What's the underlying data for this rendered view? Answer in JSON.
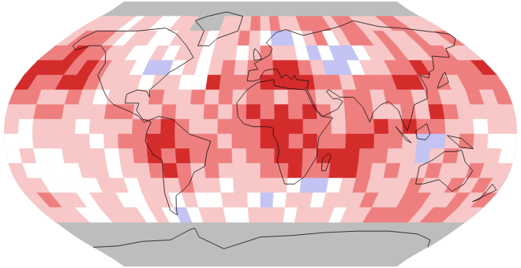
{
  "chart_data": {
    "type": "heatmap",
    "tick_labels": false,
    "x": [
      -175,
      -165,
      -155,
      -145,
      -135,
      -125,
      -115,
      -105,
      -95,
      -85,
      -75,
      -65,
      -55,
      -45,
      -35,
      -25,
      -15,
      -5,
      5,
      15,
      25,
      35,
      45,
      55,
      65,
      75,
      85,
      95,
      105,
      115,
      125,
      135,
      145,
      155,
      165,
      175
    ],
    "y": [
      85,
      75,
      65,
      55,
      45,
      35,
      25,
      15,
      5,
      -5,
      -15,
      -25,
      -35,
      -45,
      -55,
      -65,
      -75,
      -85
    ],
    "xlim": [
      -180,
      180
    ],
    "ylim": [
      -90,
      90
    ],
    "color_levels": [
      -1,
      0,
      1,
      2,
      3
    ],
    "colors": [
      "#c3c3f4",
      "#ffffff",
      "#f8c8c8",
      "#ef7f7f",
      "#d42b2b"
    ],
    "cells": [
      [
        null,
        null,
        null,
        null,
        null,
        null,
        null,
        null,
        null,
        null,
        null,
        null,
        null,
        null,
        null,
        null,
        null,
        null,
        null,
        null,
        null,
        null,
        null,
        null,
        null,
        null,
        null,
        null,
        null,
        null,
        null,
        null,
        null,
        null,
        null,
        null
      ],
      [
        1,
        1,
        1,
        1,
        0,
        1,
        1,
        0,
        0,
        1,
        1,
        null,
        null,
        null,
        1,
        1,
        1,
        2,
        1,
        2,
        1,
        1,
        2,
        2,
        2,
        1,
        2,
        2,
        1,
        1,
        1,
        2,
        2,
        1,
        1,
        1
      ],
      [
        1,
        2,
        2,
        2,
        1,
        0,
        1,
        1,
        0,
        0,
        1,
        1,
        1,
        0,
        1,
        1,
        2,
        1,
        0,
        -1,
        -1,
        0,
        1,
        2,
        0,
        1,
        2,
        2,
        1,
        2,
        1,
        1,
        2,
        1,
        1,
        2
      ],
      [
        2,
        2,
        3,
        2,
        2,
        1,
        1,
        0,
        0,
        1,
        0,
        1,
        1,
        0,
        1,
        1,
        0,
        1,
        2,
        1,
        1,
        0,
        -1,
        0,
        -1,
        -1,
        0,
        1,
        1,
        2,
        1,
        1,
        2,
        2,
        1,
        1
      ],
      [
        3,
        3,
        3,
        2,
        3,
        2,
        1,
        1,
        0,
        -1,
        -1,
        0,
        1,
        0,
        1,
        2,
        1,
        2,
        2,
        3,
        3,
        2,
        1,
        -1,
        -1,
        0,
        1,
        1,
        2,
        2,
        3,
        2,
        2,
        2,
        2,
        3
      ],
      [
        3,
        2,
        2,
        3,
        3,
        2,
        1,
        1,
        1,
        0,
        1,
        1,
        0,
        0,
        3,
        2,
        2,
        2,
        3,
        3,
        3,
        3,
        2,
        2,
        1,
        2,
        2,
        2,
        3,
        3,
        2,
        2,
        1,
        2,
        2,
        2
      ],
      [
        2,
        2,
        1,
        1,
        2,
        1,
        0,
        1,
        1,
        1,
        2,
        1,
        1,
        2,
        1,
        2,
        1,
        2,
        2,
        1,
        2,
        2,
        1,
        1,
        2,
        2,
        1,
        2,
        2,
        1,
        2,
        1,
        1,
        2,
        1,
        2
      ],
      [
        1,
        1,
        2,
        2,
        1,
        1,
        1,
        2,
        2,
        1,
        1,
        2,
        1,
        1,
        2,
        1,
        2,
        3,
        2,
        3,
        2,
        3,
        2,
        1,
        2,
        2,
        1,
        1,
        2,
        1,
        3,
        2,
        1,
        1,
        1,
        1
      ],
      [
        1,
        0,
        1,
        1,
        1,
        0,
        1,
        1,
        1,
        2,
        2,
        3,
        2,
        1,
        1,
        2,
        2,
        2,
        3,
        3,
        3,
        2,
        2,
        1,
        2,
        2,
        3,
        2,
        3,
        2,
        2,
        1,
        1,
        0,
        1,
        1
      ],
      [
        0,
        0,
        1,
        1,
        1,
        1,
        0,
        1,
        2,
        2,
        3,
        3,
        2,
        2,
        2,
        1,
        2,
        2,
        3,
        3,
        2,
        3,
        2,
        2,
        3,
        3,
        2,
        2,
        1,
        -1,
        -1,
        1,
        2,
        1,
        0,
        0
      ],
      [
        0,
        1,
        0,
        0,
        1,
        1,
        1,
        0,
        1,
        2,
        3,
        2,
        3,
        2,
        2,
        2,
        1,
        2,
        2,
        3,
        3,
        2,
        3,
        3,
        3,
        2,
        2,
        1,
        1,
        -1,
        1,
        2,
        1,
        1,
        1,
        0
      ],
      [
        1,
        0,
        0,
        0,
        0,
        1,
        1,
        0,
        1,
        1,
        2,
        3,
        2,
        1,
        2,
        1,
        1,
        1,
        2,
        2,
        3,
        2,
        2,
        3,
        3,
        2,
        1,
        2,
        1,
        1,
        2,
        1,
        1,
        2,
        1,
        1
      ],
      [
        1,
        1,
        0,
        0,
        0,
        0,
        1,
        1,
        0,
        1,
        1,
        1,
        2,
        1,
        1,
        0,
        1,
        1,
        1,
        1,
        0,
        -1,
        -1,
        0,
        1,
        2,
        1,
        1,
        1,
        2,
        1,
        1,
        2,
        1,
        2,
        1
      ],
      [
        1,
        2,
        1,
        1,
        0,
        1,
        1,
        0,
        0,
        1,
        1,
        0,
        1,
        0,
        0,
        1,
        1,
        0,
        -1,
        0,
        1,
        1,
        0,
        1,
        1,
        1,
        2,
        1,
        1,
        2,
        2,
        1,
        1,
        2,
        1,
        2
      ],
      [
        1,
        1,
        1,
        0,
        0,
        1,
        1,
        1,
        0,
        1,
        0,
        -1,
        0,
        1,
        1,
        0,
        0,
        1,
        1,
        1,
        0,
        1,
        1,
        1,
        0,
        1,
        1,
        2,
        2,
        2,
        2,
        1,
        2,
        2,
        1,
        1
      ],
      [
        null,
        null,
        null,
        null,
        null,
        null,
        null,
        null,
        null,
        null,
        null,
        null,
        null,
        null,
        null,
        null,
        null,
        null,
        null,
        null,
        null,
        null,
        null,
        null,
        null,
        null,
        null,
        null,
        null,
        null,
        null,
        null,
        null,
        null,
        null,
        null
      ],
      [
        null,
        null,
        null,
        null,
        null,
        null,
        null,
        null,
        null,
        null,
        null,
        null,
        null,
        null,
        null,
        null,
        null,
        null,
        null,
        null,
        null,
        null,
        null,
        null,
        null,
        null,
        null,
        null,
        null,
        null,
        null,
        null,
        null,
        null,
        null,
        null
      ],
      [
        null,
        null,
        null,
        null,
        null,
        null,
        null,
        null,
        null,
        null,
        null,
        null,
        null,
        null,
        null,
        null,
        null,
        null,
        null,
        null,
        null,
        null,
        null,
        null,
        null,
        null,
        null,
        null,
        null,
        null,
        null,
        null,
        null,
        null,
        null,
        null
      ]
    ]
  }
}
